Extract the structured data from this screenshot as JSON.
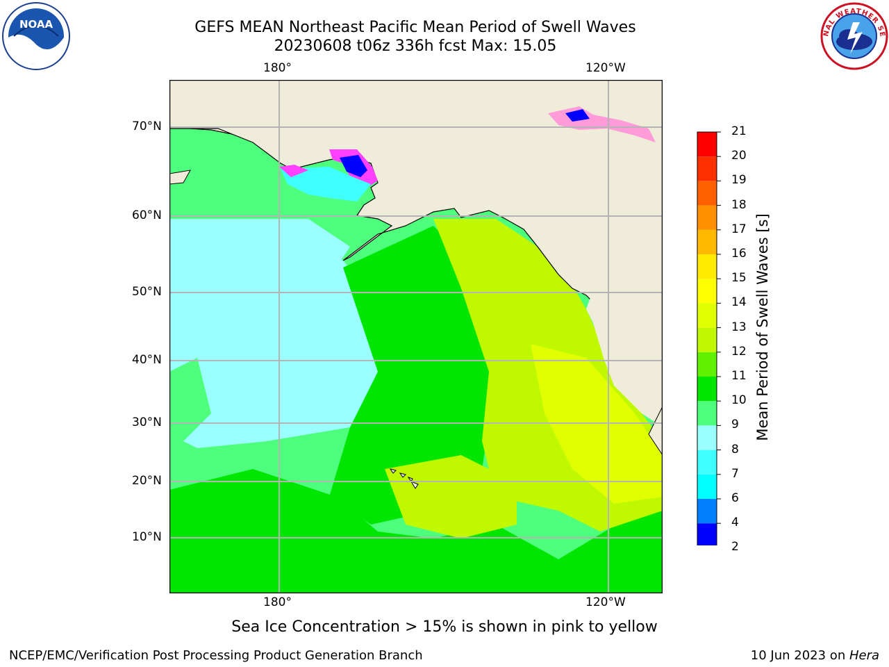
{
  "title": {
    "line1": "GEFS MEAN Northeast Pacific Mean Period of Swell Waves",
    "line2": "20230608 t06z 336h fcst   Max: 15.05"
  },
  "map": {
    "lon_ticks": [
      "180°",
      "120°W"
    ],
    "lat_ticks": [
      "70°N",
      "60°N",
      "50°N",
      "40°N",
      "30°N",
      "20°N",
      "10°N"
    ],
    "colors": {
      "land": "#efedda",
      "coast": "#000000",
      "grid": "#b4b4b4"
    }
  },
  "colorbar": {
    "label": "Mean Period of Swell Waves [s]",
    "ticks": [
      "2",
      "4",
      "6",
      "7",
      "8",
      "9",
      "10",
      "11",
      "12",
      "13",
      "14",
      "15",
      "16",
      "17",
      "18",
      "19",
      "20",
      "21"
    ],
    "colors": [
      "#0000ff",
      "#0080ff",
      "#00ffff",
      "#40ffff",
      "#9bffff",
      "#4dff7c",
      "#00e600",
      "#60f000",
      "#c0f800",
      "#e0ff00",
      "#ffff00",
      "#ffea00",
      "#ffba00",
      "#ff9000",
      "#ff6000",
      "#ff3000",
      "#ff0000"
    ]
  },
  "note": "Sea Ice Concentration > 15% is shown in pink to yellow",
  "footer": {
    "left": "NCEP/EMC/Verification Post Processing Product Generation Branch",
    "right_date": "10 Jun 2023 on ",
    "right_machine": "Hera"
  },
  "logos": {
    "noaa_text": "NOAA",
    "nws_text": "NATIONAL WEATHER SERVICE"
  }
}
